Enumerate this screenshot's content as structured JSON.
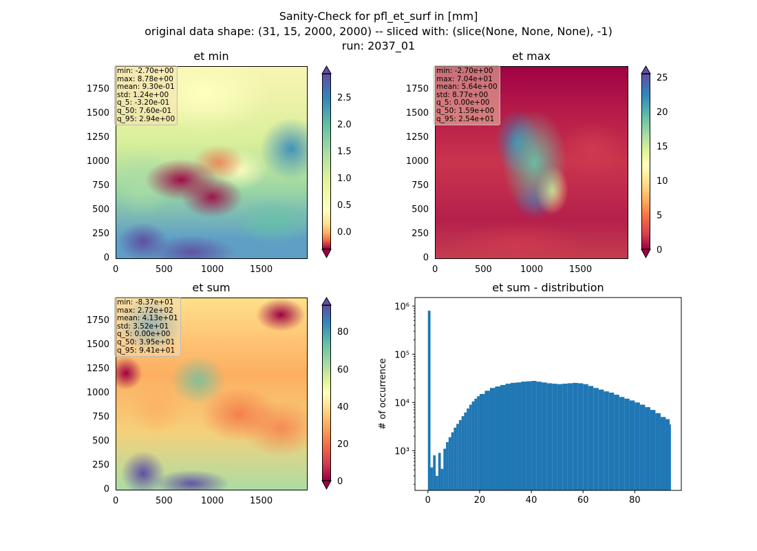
{
  "figure": {
    "title_lines": [
      "Sanity-Check for pfl_et_surf in [mm]",
      "original data shape: (31, 15, 2000, 2000) -- sliced with: (slice(None, None, None), -1)",
      "run: 2037_01"
    ]
  },
  "panels": [
    {
      "title": "et min",
      "map_ticks_x": [
        "0",
        "500",
        "1000",
        "1500"
      ],
      "map_ticks_y": [
        "0",
        "250",
        "500",
        "750",
        "1000",
        "1250",
        "1500",
        "1750"
      ],
      "colorbar_ticks": [
        "2.5",
        "2.0",
        "1.5",
        "1.0",
        "0.5",
        "0.0"
      ],
      "stats": [
        "min: -2.70e+00",
        "max: 8.78e+00",
        "mean: 9.30e-01",
        "std: 1.24e+00",
        "q_5: -3.20e-01",
        "q_50: 7.60e-01",
        "q_95: 2.94e+00"
      ]
    },
    {
      "title": "et max",
      "map_ticks_x": [
        "0",
        "500",
        "1000",
        "1500"
      ],
      "map_ticks_y": [
        "0",
        "250",
        "500",
        "750",
        "1000",
        "1250",
        "1500",
        "1750"
      ],
      "colorbar_ticks": [
        "25",
        "20",
        "15",
        "10",
        "5",
        "0"
      ],
      "stats": [
        "min: -2.70e+00",
        "max: 7.04e+01",
        "mean: 5.64e+00",
        "std: 8.77e+00",
        "q_5: 0.00e+00",
        "q_50: 1.59e+00",
        "q_95: 2.54e+01"
      ]
    },
    {
      "title": "et sum",
      "map_ticks_x": [
        "0",
        "500",
        "1000",
        "1500"
      ],
      "map_ticks_y": [
        "0",
        "250",
        "500",
        "750",
        "1000",
        "1250",
        "1500",
        "1750"
      ],
      "colorbar_ticks": [
        "80",
        "60",
        "40",
        "20",
        "0"
      ],
      "stats": [
        "min: -8.37e+01",
        "max: 2.72e+02",
        "mean: 4.13e+01",
        "std: 3.52e+01",
        "q_5: 0.00e+00",
        "q_50: 3.95e+01",
        "q_95: 9.41e+01"
      ]
    }
  ],
  "chart_data": [
    {
      "type": "heatmap",
      "title": "et min",
      "xlim": [
        0,
        2000
      ],
      "ylim": [
        0,
        2000
      ],
      "colormap": "Spectral",
      "colorbar_range": [
        -0.3,
        2.9
      ],
      "colors": {
        "low": "#9e0142",
        "mid": "#ffffbf",
        "high": "#5e4fa2"
      }
    },
    {
      "type": "heatmap",
      "title": "et max",
      "xlim": [
        0,
        2000
      ],
      "ylim": [
        0,
        2000
      ],
      "colormap": "Spectral",
      "colorbar_range": [
        0,
        26
      ]
    },
    {
      "type": "heatmap",
      "title": "et sum",
      "xlim": [
        0,
        2000
      ],
      "ylim": [
        0,
        2000
      ],
      "colormap": "Spectral",
      "colorbar_range": [
        -2,
        96
      ]
    },
    {
      "type": "bar",
      "title": "et sum - distribution",
      "xlabel": "",
      "ylabel": "# of occurrence",
      "yscale": "log",
      "xlim": [
        -5,
        98
      ],
      "ylim": [
        150,
        1500000
      ],
      "xticks": [
        "0",
        "20",
        "40",
        "60",
        "80"
      ],
      "yticks": [
        "10³",
        "10⁴",
        "10⁵",
        "10⁶"
      ],
      "bar_color": "#1f77b4",
      "bin_width": 0.5,
      "bins": [
        [
          0,
          800000
        ],
        [
          1,
          450
        ],
        [
          2,
          800
        ],
        [
          3,
          300
        ],
        [
          4,
          900
        ],
        [
          5,
          420
        ],
        [
          6,
          1100
        ],
        [
          7,
          1500
        ],
        [
          8,
          1900
        ],
        [
          9,
          2400
        ],
        [
          10,
          3000
        ],
        [
          11,
          3600
        ],
        [
          12,
          4300
        ],
        [
          13,
          5200
        ],
        [
          14,
          6200
        ],
        [
          15,
          7500
        ],
        [
          16,
          9000
        ],
        [
          17,
          10500
        ],
        [
          18,
          12000
        ],
        [
          19,
          13500
        ],
        [
          20,
          15000
        ],
        [
          22,
          17500
        ],
        [
          24,
          20000
        ],
        [
          26,
          21500
        ],
        [
          28,
          23000
        ],
        [
          30,
          24500
        ],
        [
          32,
          25500
        ],
        [
          34,
          26000
        ],
        [
          36,
          27000
        ],
        [
          38,
          27500
        ],
        [
          40,
          28000
        ],
        [
          42,
          27000
        ],
        [
          44,
          26000
        ],
        [
          46,
          25000
        ],
        [
          48,
          24500
        ],
        [
          50,
          24000
        ],
        [
          52,
          24500
        ],
        [
          54,
          25000
        ],
        [
          56,
          25500
        ],
        [
          58,
          25000
        ],
        [
          60,
          24000
        ],
        [
          62,
          22000
        ],
        [
          64,
          20000
        ],
        [
          66,
          18500
        ],
        [
          68,
          17000
        ],
        [
          70,
          16000
        ],
        [
          72,
          14500
        ],
        [
          74,
          13000
        ],
        [
          76,
          12000
        ],
        [
          78,
          11000
        ],
        [
          80,
          10000
        ],
        [
          82,
          9000
        ],
        [
          84,
          8000
        ],
        [
          86,
          7000
        ],
        [
          88,
          6000
        ],
        [
          90,
          5000
        ],
        [
          92,
          4500
        ],
        [
          93.5,
          3500
        ]
      ]
    }
  ]
}
